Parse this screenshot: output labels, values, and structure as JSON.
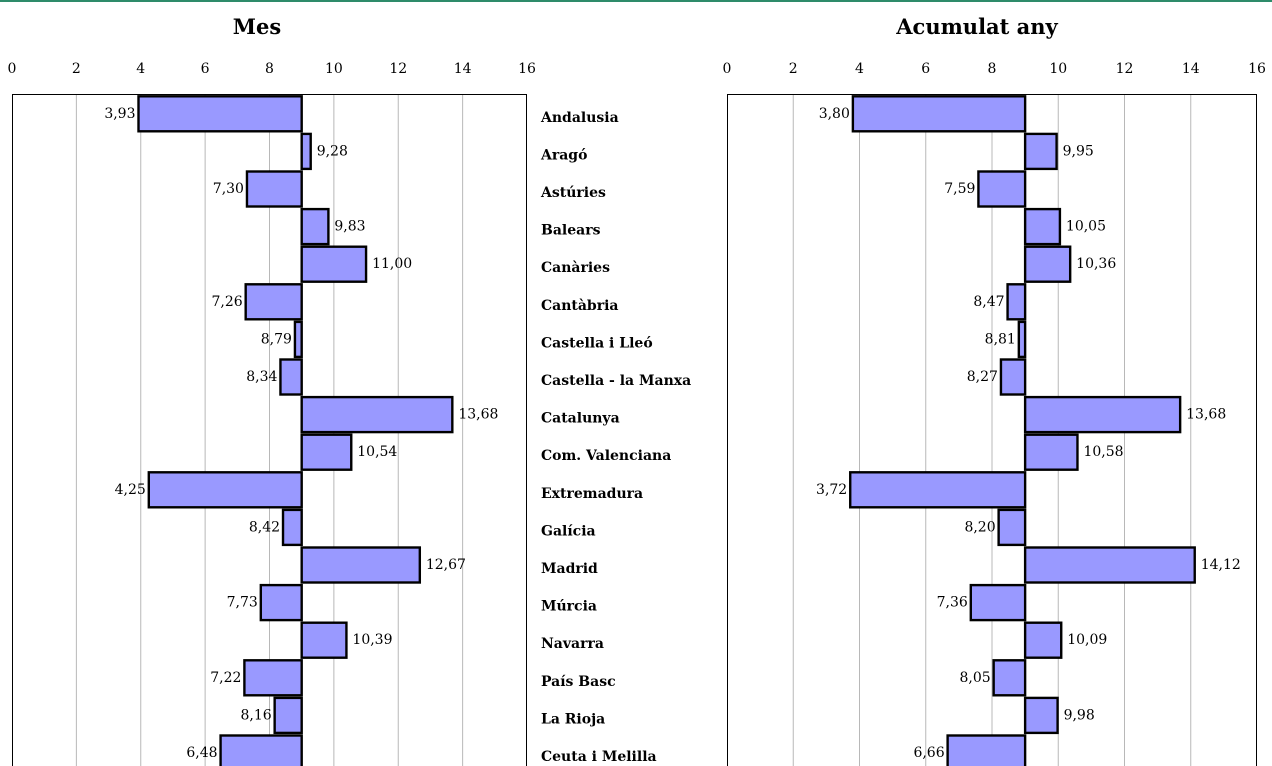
{
  "chart_data": [
    {
      "type": "bar",
      "orientation": "horizontal",
      "title": "Mes",
      "xlim": [
        0,
        16
      ],
      "baseline": 9,
      "ticks": [
        0,
        2,
        4,
        6,
        8,
        10,
        12,
        14,
        16
      ],
      "grid": true,
      "categories": [
        "Andalusia",
        "Aragó",
        "Astúries",
        "Balears",
        "Canàries",
        "Cantàbria",
        "Castella i Lleó",
        "Castella - la Manxa",
        "Catalunya",
        "Com. Valenciana",
        "Extremadura",
        "Galícia",
        "Madrid",
        "Múrcia",
        "Navarra",
        "País Basc",
        "La Rioja",
        "Ceuta i Melilla"
      ],
      "values": [
        3.93,
        9.28,
        7.3,
        9.83,
        11.0,
        7.26,
        8.79,
        8.34,
        13.68,
        10.54,
        4.25,
        8.42,
        12.67,
        7.73,
        10.39,
        7.22,
        8.16,
        6.48
      ],
      "value_labels": [
        "3,93",
        "9,28",
        "7,30",
        "9,83",
        "11,00",
        "7,26",
        "8,79",
        "8,34",
        "13,68",
        "10,54",
        "4,25",
        "8,42",
        "12,67",
        "7,73",
        "10,39",
        "7,22",
        "8,16",
        "6,48"
      ],
      "bar_color": "#9999ff"
    },
    {
      "type": "bar",
      "orientation": "horizontal",
      "title": "Acumulat any",
      "xlim": [
        0,
        16
      ],
      "baseline": 9,
      "ticks": [
        0,
        2,
        4,
        6,
        8,
        10,
        12,
        14,
        16
      ],
      "grid": true,
      "categories": [
        "Andalusia",
        "Aragó",
        "Astúries",
        "Balears",
        "Canàries",
        "Cantàbria",
        "Castella i Lleó",
        "Castella - la Manxa",
        "Catalunya",
        "Com. Valenciana",
        "Extremadura",
        "Galícia",
        "Madrid",
        "Múrcia",
        "Navarra",
        "País Basc",
        "La Rioja",
        "Ceuta i Melilla"
      ],
      "values": [
        3.8,
        9.95,
        7.59,
        10.05,
        10.36,
        8.47,
        8.81,
        8.27,
        13.68,
        10.58,
        3.72,
        8.2,
        14.12,
        7.36,
        10.09,
        8.05,
        9.98,
        6.66
      ],
      "value_labels": [
        "3,80",
        "9,95",
        "7,59",
        "10,05",
        "10,36",
        "8,47",
        "8,81",
        "8,27",
        "13,68",
        "10,58",
        "3,72",
        "8,20",
        "14,12",
        "7,36",
        "10,09",
        "8,05",
        "9,98",
        "6,66"
      ],
      "bar_color": "#9999ff"
    }
  ]
}
